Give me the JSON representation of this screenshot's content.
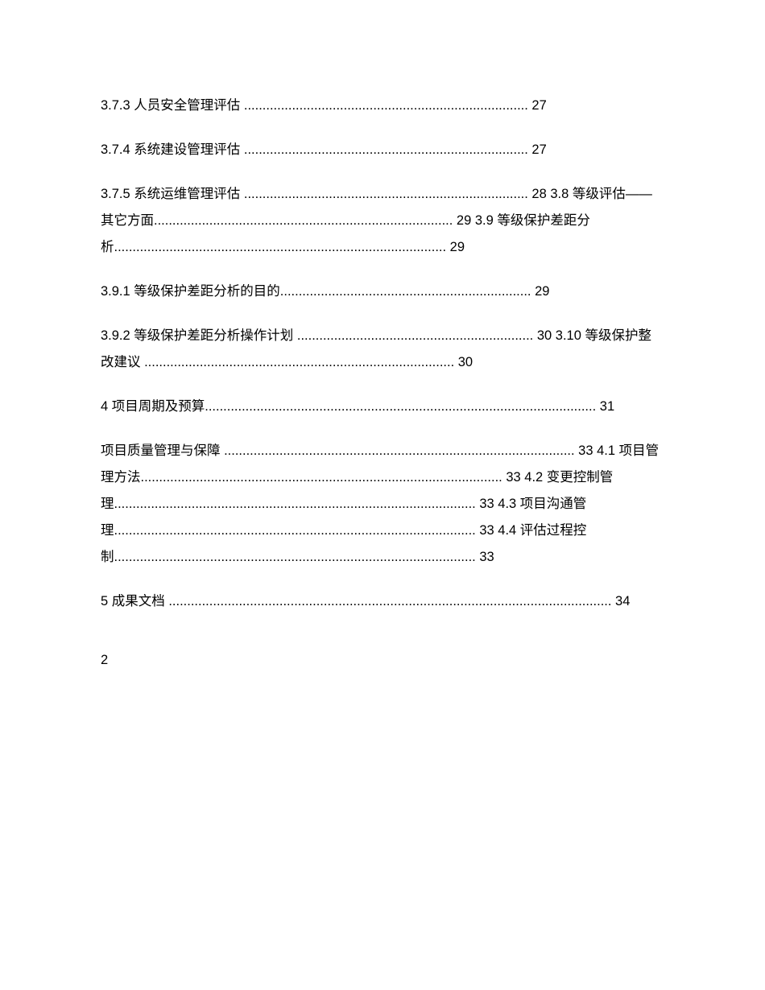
{
  "blocks": [
    "3.7.3 人员安全管理评估 ............................................................................. 27",
    "3.7.4 系统建设管理评估 ............................................................................. 27",
    "3.7.5 系统运维管理评估 ............................................................................. 28 3.8 等级评估——其它方面................................................................................. 29 3.9 等级保护差距分析.......................................................................................... 29",
    "3.9.1 等级保护差距分析的目的.................................................................... 29",
    "3.9.2 等级保护差距分析操作计划 ................................................................ 30 3.10 等级保护整改建议 .................................................................................... 30",
    "4 项目周期及预算.......................................................................................................... 31",
    "项目质量管理与保障 ............................................................................................... 33 4.1 项目管理方法.................................................................................................. 33 4.2 变更控制管理.................................................................................................. 33 4.3 项目沟通管理.................................................................................................. 33 4.4 评估过程控制.................................................................................................. 33",
    "5 成果文档 ........................................................................................................................ 34"
  ],
  "pageNumber": "2"
}
